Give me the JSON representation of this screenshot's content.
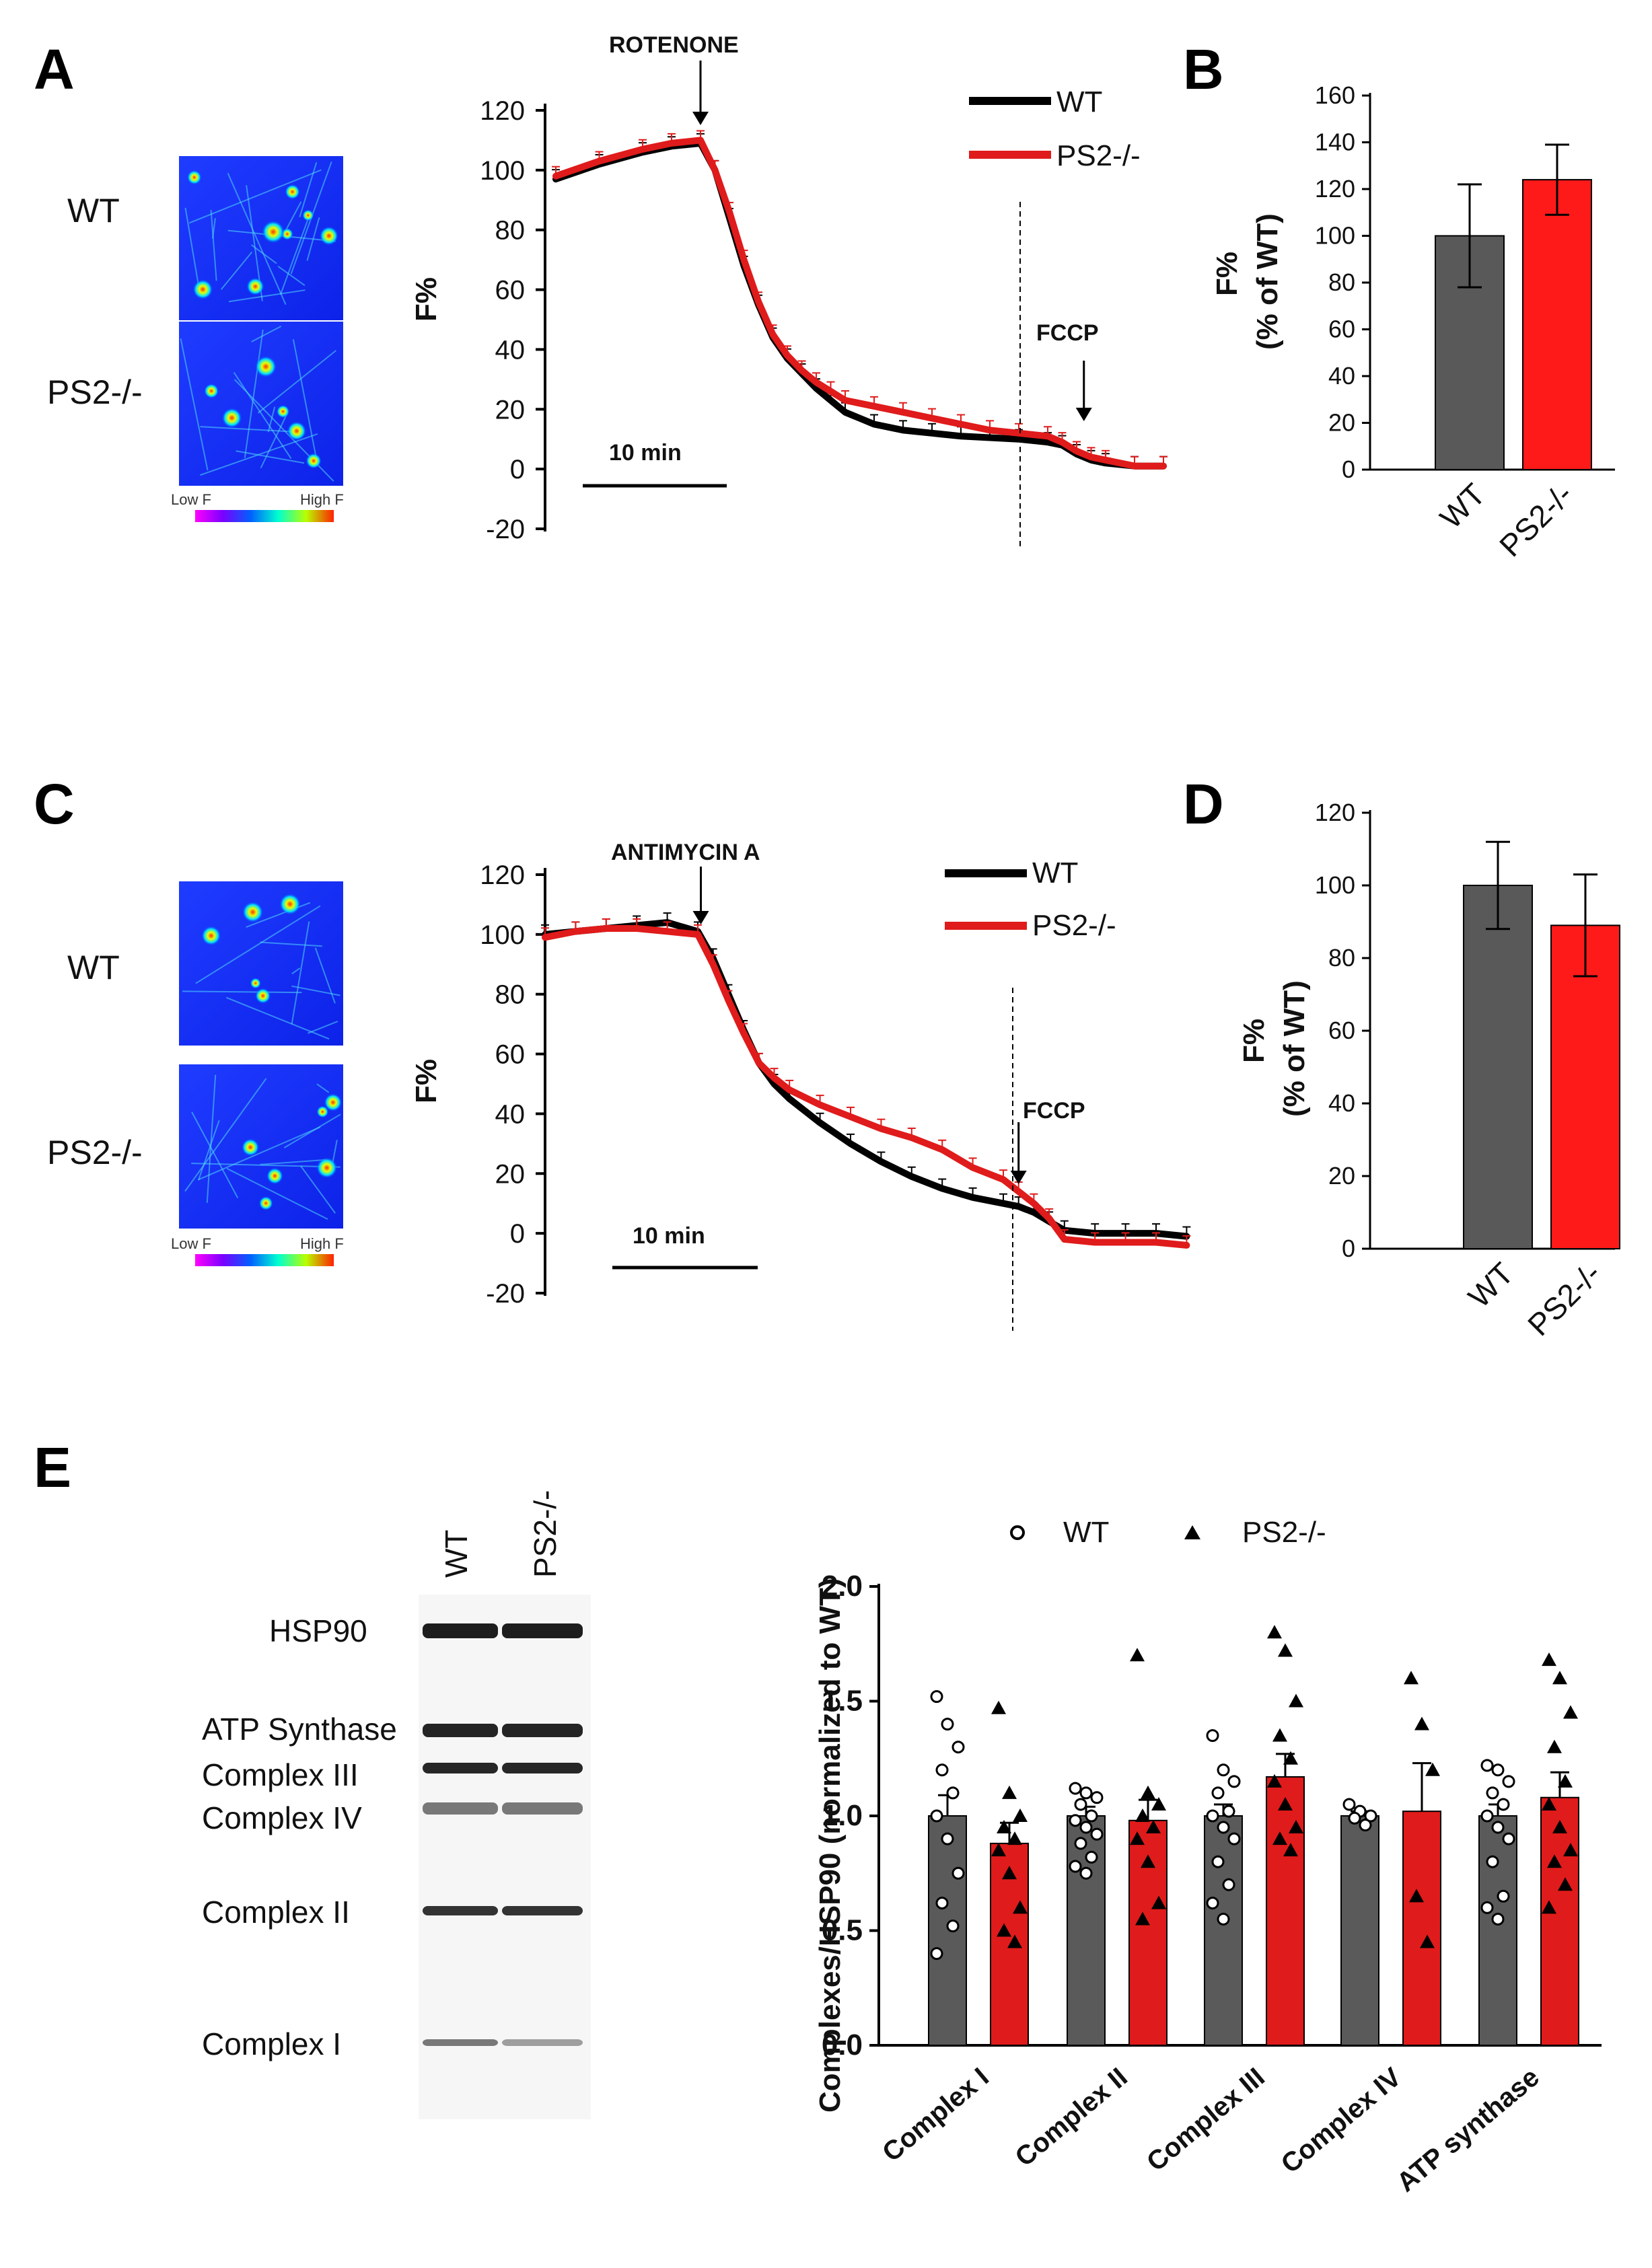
{
  "colors": {
    "wt_line": "#000000",
    "ps2_line": "#e01b1b",
    "wt_bar": "#595959",
    "ps2_bar": "#ff1a1a",
    "bar_red": "#e01b1b",
    "bar_grey": "#5a5a5a"
  },
  "panel_labels": {
    "a": "A",
    "b": "B",
    "c": "C",
    "d": "D",
    "e": "E"
  },
  "images": {
    "a": {
      "wt_label": "WT",
      "ps2_label": "PS2-/-",
      "scale_low": "Low F",
      "scale_high": "High F"
    },
    "c": {
      "wt_label": "WT",
      "ps2_label": "PS2-/-",
      "scale_low": "Low F",
      "scale_high": "High F"
    }
  },
  "chart_data": [
    {
      "id": "A-trace",
      "type": "line",
      "ylabel": "F%",
      "ylim": [
        -20,
        120
      ],
      "yticks": [
        "120",
        "100",
        "80",
        "60",
        "40",
        "20",
        "0",
        "-20"
      ],
      "legend": [
        "WT",
        "PS2-/-"
      ],
      "annotations": {
        "drug": "ROTENONE",
        "fccp": "FCCP",
        "scale_bar": "10 min"
      },
      "series": [
        {
          "name": "WT",
          "x": [
            0,
            3,
            6,
            8,
            10,
            11,
            12,
            13,
            14,
            15,
            16,
            17,
            18,
            19,
            20,
            22,
            24,
            26,
            28,
            30,
            32,
            34,
            35,
            36,
            37,
            38,
            40,
            42
          ],
          "y": [
            97,
            102,
            106,
            108,
            109,
            100,
            84,
            68,
            55,
            44,
            37,
            32,
            27,
            23,
            19,
            15,
            13,
            12,
            11,
            10.5,
            10,
            9,
            8,
            5,
            3,
            2,
            1,
            1
          ]
        },
        {
          "name": "PS2-/-",
          "x": [
            0,
            3,
            6,
            8,
            10,
            11,
            12,
            13,
            14,
            15,
            16,
            17,
            18,
            19,
            20,
            22,
            24,
            26,
            28,
            30,
            32,
            34,
            35,
            36,
            37,
            38,
            40,
            42
          ],
          "y": [
            98,
            103,
            107,
            109,
            110,
            100,
            86,
            70,
            56,
            45,
            38,
            33,
            29,
            26,
            23,
            21,
            19,
            17,
            15,
            13,
            12,
            11,
            9,
            6,
            4,
            3,
            1,
            1
          ]
        }
      ]
    },
    {
      "id": "B-bar",
      "type": "bar",
      "ylabel": "F%",
      "ylabel2": "(% of WT)",
      "ylim": [
        0,
        160
      ],
      "yticks": [
        "160",
        "140",
        "120",
        "100",
        "80",
        "60",
        "40",
        "20",
        "0"
      ],
      "categories": [
        "WT",
        "PS2-/-"
      ],
      "values": [
        100,
        124
      ],
      "errors": [
        22,
        15
      ]
    },
    {
      "id": "C-trace",
      "type": "line",
      "ylabel": "F%",
      "ylim": [
        -20,
        120
      ],
      "yticks": [
        "120",
        "100",
        "80",
        "60",
        "40",
        "20",
        "0",
        "-20"
      ],
      "legend": [
        "WT",
        "PS2-/-"
      ],
      "annotations": {
        "drug": "ANTIMYCIN A",
        "fccp": "FCCP",
        "scale_bar": "10 min"
      },
      "series": [
        {
          "name": "WT",
          "x": [
            0,
            2,
            4,
            6,
            8,
            10,
            11,
            12,
            13,
            14,
            15,
            16,
            18,
            20,
            22,
            24,
            26,
            28,
            30,
            31,
            32,
            33,
            34,
            36,
            38,
            40,
            42
          ],
          "y": [
            100,
            101,
            102,
            103,
            104,
            101,
            92,
            80,
            68,
            57,
            50,
            45,
            37,
            30,
            24,
            19,
            15,
            12,
            10,
            9,
            7,
            4,
            1,
            0,
            0,
            0,
            -1
          ]
        },
        {
          "name": "PS2-/-",
          "x": [
            0,
            2,
            4,
            6,
            8,
            10,
            11,
            12,
            13,
            14,
            15,
            16,
            18,
            20,
            22,
            24,
            26,
            28,
            30,
            31,
            32,
            33,
            34,
            36,
            38,
            40,
            42
          ],
          "y": [
            99,
            101,
            102,
            102,
            101,
            100,
            90,
            78,
            67,
            57,
            52,
            48,
            43,
            39,
            35,
            32,
            28,
            22,
            18,
            14,
            10,
            5,
            -2,
            -3,
            -3,
            -3,
            -4
          ]
        }
      ]
    },
    {
      "id": "D-bar",
      "type": "bar",
      "ylabel": "F%",
      "ylabel2": "(% of WT)",
      "ylim": [
        0,
        120
      ],
      "yticks": [
        "120",
        "100",
        "80",
        "60",
        "40",
        "20",
        "0"
      ],
      "categories": [
        "WT",
        "PS2-/-"
      ],
      "values": [
        100,
        89
      ],
      "errors": [
        12,
        14
      ]
    },
    {
      "id": "E-bar",
      "type": "bar",
      "ylabel": "Complexes/HSP90 (normalized to WT)",
      "ylim": [
        0,
        2.0
      ],
      "yticks": [
        "2.0",
        "1.5",
        "1.0",
        "0.5",
        "0.0"
      ],
      "legend": [
        "WT",
        "PS2-/-"
      ],
      "categories": [
        "Complex I",
        "Complex II",
        "Complex III",
        "Complex IV",
        "ATP synthase"
      ],
      "series": [
        {
          "name": "WT",
          "values": [
            1.0,
            1.0,
            1.0,
            1.0,
            1.0
          ],
          "errors": [
            0.09,
            0.04,
            0.05,
            0.02,
            0.05
          ],
          "points": [
            [
              1.52,
              1.4,
              1.3,
              1.2,
              1.1,
              1.0,
              0.9,
              0.75,
              0.62,
              0.52,
              0.4
            ],
            [
              1.12,
              1.1,
              1.08,
              1.05,
              1.0,
              0.98,
              0.95,
              0.92,
              0.88,
              0.82,
              0.78,
              0.75
            ],
            [
              1.35,
              1.2,
              1.15,
              1.1,
              1.02,
              1.0,
              0.95,
              0.9,
              0.8,
              0.7,
              0.62,
              0.55
            ],
            [
              1.05,
              1.02,
              1.0,
              0.99,
              0.96
            ],
            [
              1.22,
              1.2,
              1.15,
              1.1,
              1.05,
              1.0,
              0.95,
              0.9,
              0.8,
              0.65,
              0.6,
              0.55
            ]
          ]
        },
        {
          "name": "PS2-/-",
          "values": [
            0.88,
            0.98,
            1.17,
            1.02,
            1.08
          ],
          "errors": [
            0.09,
            0.09,
            0.1,
            0.21,
            0.11
          ],
          "points": [
            [
              1.47,
              1.1,
              1.0,
              0.95,
              0.9,
              0.85,
              0.75,
              0.6,
              0.5,
              0.45
            ],
            [
              1.7,
              1.1,
              1.05,
              1.0,
              0.95,
              0.9,
              0.8,
              0.62,
              0.55
            ],
            [
              1.8,
              1.72,
              1.5,
              1.35,
              1.25,
              1.15,
              1.05,
              0.95,
              0.9,
              0.85
            ],
            [
              1.6,
              1.4,
              1.2,
              0.65,
              0.45
            ],
            [
              1.68,
              1.6,
              1.45,
              1.3,
              1.15,
              1.05,
              0.95,
              0.85,
              0.8,
              0.7,
              0.6
            ]
          ]
        }
      ]
    }
  ],
  "blot": {
    "lanes": [
      "WT",
      "PS2-/-"
    ],
    "bands": [
      "HSP90",
      "ATP Synthase",
      "Complex III",
      "Complex IV",
      "Complex II",
      "Complex I"
    ]
  }
}
